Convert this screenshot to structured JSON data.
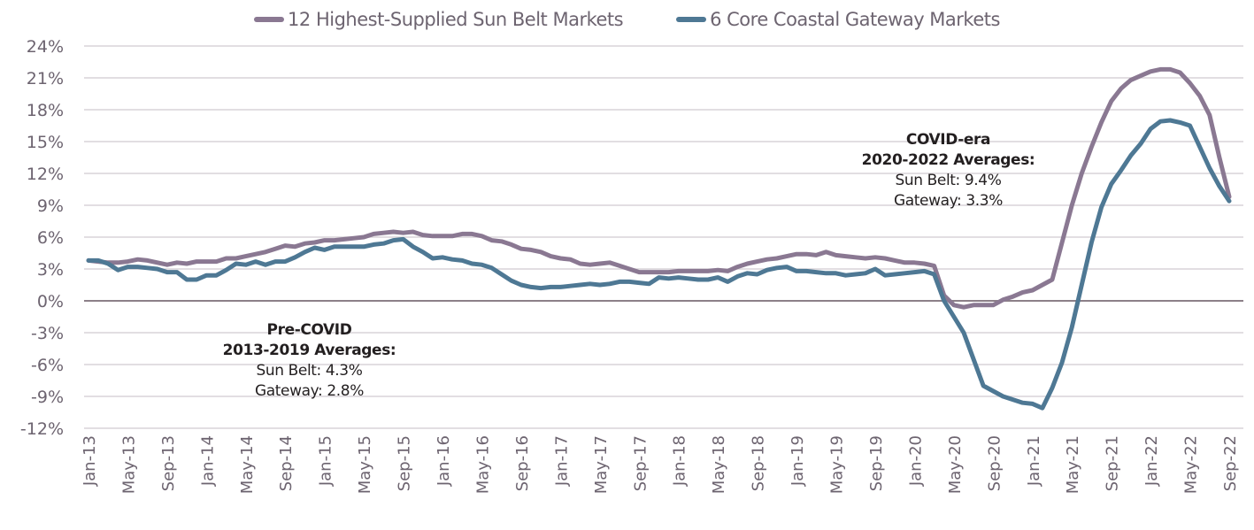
{
  "chart_data": {
    "type": "line",
    "title": "",
    "xlabel": "",
    "ylabel": "",
    "ylim": [
      -12,
      24
    ],
    "yticks": [
      24,
      21,
      18,
      15,
      12,
      9,
      6,
      3,
      0,
      -3,
      -6,
      -9,
      -12
    ],
    "ytick_labels": [
      "24%",
      "21%",
      "18%",
      "15%",
      "12%",
      "9%",
      "6%",
      "3%",
      "0%",
      "-3%",
      "-6%",
      "-9%",
      "-12%"
    ],
    "grid": true,
    "legend_position": "top-center",
    "x_start": "Jan-13",
    "x_end": "Sep-22",
    "xtick_labels": [
      "Jan-13",
      "May-13",
      "Sep-13",
      "Jan-14",
      "May-14",
      "Sep-14",
      "Jan-15",
      "May-15",
      "Sep-15",
      "Jan-16",
      "May-16",
      "Sep-16",
      "Jan-17",
      "May-17",
      "Sep-17",
      "Jan-18",
      "May-18",
      "Sep-18",
      "Jan-19",
      "May-19",
      "Sep-19",
      "Jan-20",
      "May-20",
      "Sep-20",
      "Jan-21",
      "May-21",
      "Sep-21",
      "Jan-22",
      "May-22",
      "Sep-22"
    ],
    "xtick_every_months": 4,
    "series": [
      {
        "name": "12 Highest-Supplied Sun Belt Markets",
        "color": "#8a7892",
        "values": [
          3.8,
          3.7,
          3.6,
          3.6,
          3.7,
          3.9,
          3.8,
          3.6,
          3.4,
          3.6,
          3.5,
          3.7,
          3.7,
          3.7,
          4.0,
          4.0,
          4.2,
          4.4,
          4.6,
          4.9,
          5.2,
          5.1,
          5.4,
          5.5,
          5.7,
          5.7,
          5.8,
          5.9,
          6.0,
          6.3,
          6.4,
          6.5,
          6.4,
          6.5,
          6.2,
          6.1,
          6.1,
          6.1,
          6.3,
          6.3,
          6.1,
          5.7,
          5.6,
          5.3,
          4.9,
          4.8,
          4.6,
          4.2,
          4.0,
          3.9,
          3.5,
          3.4,
          3.5,
          3.6,
          3.3,
          3.0,
          2.7,
          2.7,
          2.7,
          2.7,
          2.8,
          2.8,
          2.8,
          2.8,
          2.9,
          2.8,
          3.2,
          3.5,
          3.7,
          3.9,
          4.0,
          4.2,
          4.4,
          4.4,
          4.3,
          4.6,
          4.3,
          4.2,
          4.1,
          4.0,
          4.1,
          4.0,
          3.8,
          3.6,
          3.6,
          3.5,
          3.3,
          0.5,
          -0.4,
          -0.6,
          -0.4,
          -0.4,
          -0.4,
          0.1,
          0.4,
          0.8,
          1.0,
          1.5,
          2.0,
          5.5,
          9.0,
          12.0,
          14.5,
          16.8,
          18.8,
          20.0,
          20.8,
          21.2,
          21.6,
          21.8,
          21.8,
          21.5,
          20.5,
          19.3,
          17.5,
          13.5,
          9.8
        ]
      },
      {
        "name": "6 Core Coastal Gateway Markets",
        "color": "#4e7894",
        "values": [
          3.8,
          3.8,
          3.5,
          2.9,
          3.2,
          3.2,
          3.1,
          3.0,
          2.7,
          2.7,
          2.0,
          2.0,
          2.4,
          2.4,
          2.9,
          3.5,
          3.4,
          3.7,
          3.4,
          3.7,
          3.7,
          4.1,
          4.6,
          5.0,
          4.8,
          5.1,
          5.1,
          5.1,
          5.1,
          5.3,
          5.4,
          5.7,
          5.8,
          5.1,
          4.6,
          4.0,
          4.1,
          3.9,
          3.8,
          3.5,
          3.4,
          3.1,
          2.5,
          1.9,
          1.5,
          1.3,
          1.2,
          1.3,
          1.3,
          1.4,
          1.5,
          1.6,
          1.5,
          1.6,
          1.8,
          1.8,
          1.7,
          1.6,
          2.2,
          2.1,
          2.2,
          2.1,
          2.0,
          2.0,
          2.2,
          1.8,
          2.3,
          2.6,
          2.5,
          2.9,
          3.1,
          3.2,
          2.8,
          2.8,
          2.7,
          2.6,
          2.6,
          2.4,
          2.5,
          2.6,
          3.0,
          2.4,
          2.5,
          2.6,
          2.7,
          2.8,
          2.5,
          0.0,
          -1.5,
          -3.0,
          -5.5,
          -8.0,
          -8.5,
          -9.0,
          -9.3,
          -9.6,
          -9.7,
          -10.1,
          -8.2,
          -5.8,
          -2.5,
          1.5,
          5.5,
          8.8,
          11.0,
          12.3,
          13.7,
          14.8,
          16.2,
          16.9,
          17.0,
          16.8,
          16.5,
          14.5,
          12.5,
          10.8,
          9.4
        ]
      }
    ],
    "annotations": [
      {
        "name": "pre-covid",
        "lines": [
          "Pre-COVID",
          "2013-2019 Averages:",
          "Sun Belt: 4.3%",
          "Gateway: 2.8%"
        ]
      },
      {
        "name": "covid-era",
        "lines": [
          "COVID-era",
          "2020-2022 Averages:",
          "Sun Belt: 9.4%",
          "Gateway: 3.3%"
        ]
      }
    ]
  },
  "colors": {
    "grid": "#d9d4d8",
    "zero_line": "#8c8088",
    "axis_text": "#6d6470"
  }
}
